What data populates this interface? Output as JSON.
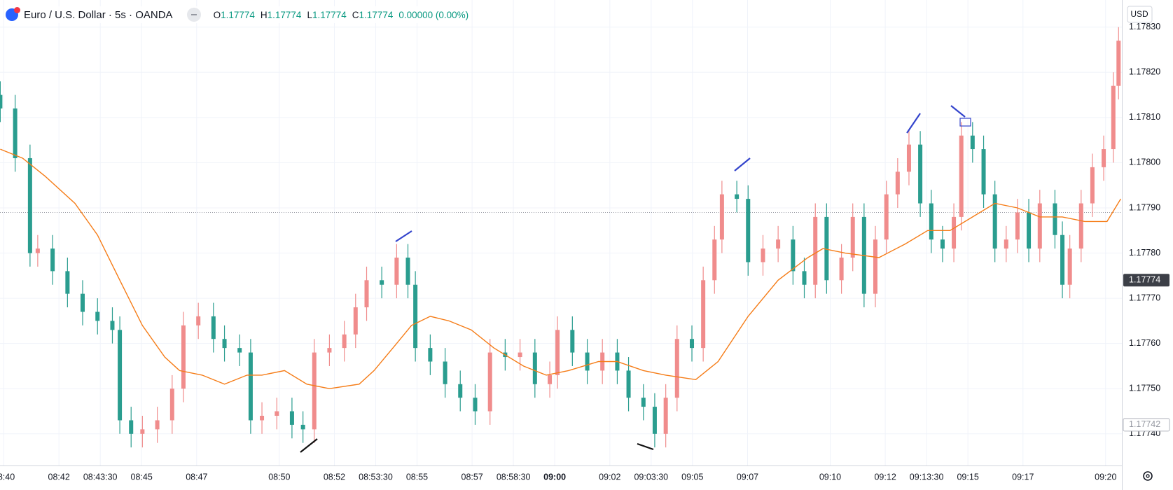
{
  "chart_data": {
    "type": "candlestick",
    "title": "Euro / U.S. Dollar · 5s · OANDA",
    "ohlc": [
      {
        "label": "O",
        "value": 1.17774
      },
      {
        "label": "H",
        "value": 1.17774
      },
      {
        "label": "L",
        "value": 1.17774
      },
      {
        "label": "C",
        "value": 1.17774
      }
    ],
    "change": "0.00000 (0.00%)",
    "currency": "USD",
    "up_color": "#f08c8c",
    "down_color": "#2a9d8f",
    "xlim": [
      519.86,
      560.59
    ],
    "ylim": [
      1.17733,
      1.17836
    ],
    "grid": true,
    "yticks": [
      {
        "value": 1.1774,
        "label": "1.17740"
      },
      {
        "value": 1.1775,
        "label": "1.17750"
      },
      {
        "value": 1.1776,
        "label": "1.17760"
      },
      {
        "value": 1.1777,
        "label": "1.17770"
      },
      {
        "value": 1.1778,
        "label": "1.17780"
      },
      {
        "value": 1.1779,
        "label": "1.17790"
      },
      {
        "value": 1.178,
        "label": "1.17800"
      },
      {
        "value": 1.1781,
        "label": "1.17810"
      },
      {
        "value": 1.1782,
        "label": "1.17820"
      },
      {
        "value": 1.1783,
        "label": "1.17830"
      }
    ],
    "xticks": [
      {
        "value": 520,
        "label": "08:40"
      },
      {
        "value": 522,
        "label": "08:42"
      },
      {
        "value": 523.5,
        "label": "08:43:30"
      },
      {
        "value": 525,
        "label": "08:45"
      },
      {
        "value": 527,
        "label": "08:47"
      },
      {
        "value": 530,
        "label": "08:50"
      },
      {
        "value": 532,
        "label": "08:52"
      },
      {
        "value": 533.5,
        "label": "08:53:30"
      },
      {
        "value": 535,
        "label": "08:55"
      },
      {
        "value": 537,
        "label": "08:57"
      },
      {
        "value": 538.5,
        "label": "08:58:30"
      },
      {
        "value": 540,
        "label": "09:00",
        "bold": true
      },
      {
        "value": 542,
        "label": "09:02"
      },
      {
        "value": 543.5,
        "label": "09:03:30"
      },
      {
        "value": 545,
        "label": "09:05"
      },
      {
        "value": 547,
        "label": "09:07"
      },
      {
        "value": 550,
        "label": "09:10"
      },
      {
        "value": 552,
        "label": "09:12"
      },
      {
        "value": 553.5,
        "label": "09:13:30"
      },
      {
        "value": 555,
        "label": "09:15"
      },
      {
        "value": 557,
        "label": "09:17"
      },
      {
        "value": 560,
        "label": "09:20"
      }
    ],
    "price_labels": [
      {
        "value": 1.17774,
        "label": "1.17774",
        "style": "solid"
      },
      {
        "value": 1.17742,
        "label": "1.17742",
        "style": "outline"
      }
    ],
    "dotted_line": 1.17789,
    "x": [
      519.87,
      520.41,
      520.95,
      521.23,
      521.77,
      522.31,
      522.86,
      523.4,
      523.94,
      524.21,
      524.62,
      525.03,
      525.57,
      526.11,
      526.52,
      527.06,
      527.61,
      528.01,
      528.56,
      528.96,
      529.37,
      529.91,
      530.46,
      530.86,
      531.27,
      531.82,
      532.36,
      532.77,
      533.17,
      533.72,
      534.26,
      534.67,
      534.94,
      535.48,
      536.02,
      536.57,
      537.11,
      537.65,
      538.2,
      538.74,
      539.28,
      539.82,
      540.1,
      540.64,
      541.18,
      541.73,
      542.27,
      542.68,
      543.22,
      543.63,
      544.03,
      544.44,
      544.98,
      545.39,
      545.8,
      546.07,
      546.61,
      547.02,
      547.56,
      548.11,
      548.65,
      549.06,
      549.46,
      549.87,
      550.41,
      550.82,
      551.23,
      551.64,
      552.04,
      552.45,
      552.86,
      553.27,
      553.67,
      554.08,
      554.49,
      554.76,
      555.17,
      555.57,
      555.98,
      556.39,
      556.8,
      557.21,
      557.61,
      558.16,
      558.43,
      558.7,
      559.11,
      559.52,
      559.93,
      560.28,
      560.47
    ],
    "open": [
      1.17815,
      1.17812,
      1.17801,
      1.1778,
      1.17781,
      1.17776,
      1.17771,
      1.17767,
      1.17765,
      1.17763,
      1.17743,
      1.1774,
      1.17741,
      1.17743,
      1.1775,
      1.17764,
      1.17766,
      1.17761,
      1.17759,
      1.17758,
      1.17743,
      1.17744,
      1.17745,
      1.17742,
      1.17741,
      1.17758,
      1.17759,
      1.17762,
      1.17768,
      1.17774,
      1.17773,
      1.17779,
      1.17773,
      1.17759,
      1.17756,
      1.17751,
      1.17748,
      1.17745,
      1.17758,
      1.17757,
      1.17758,
      1.17751,
      1.17753,
      1.17763,
      1.17758,
      1.17754,
      1.17758,
      1.17754,
      1.17748,
      1.17746,
      1.1774,
      1.17748,
      1.17761,
      1.17759,
      1.17774,
      1.17783,
      1.17793,
      1.17792,
      1.17778,
      1.17781,
      1.17783,
      1.17776,
      1.17773,
      1.17788,
      1.17774,
      1.17779,
      1.17788,
      1.17771,
      1.17783,
      1.17793,
      1.17798,
      1.17804,
      1.17791,
      1.17783,
      1.17781,
      1.17788,
      1.17806,
      1.17803,
      1.17793,
      1.17781,
      1.17783,
      1.17789,
      1.17781,
      1.17791,
      1.17784,
      1.17773,
      1.17781,
      1.17791,
      1.17799,
      1.17803,
      1.17817
    ],
    "high": [
      1.17818,
      1.17815,
      1.17804,
      1.17784,
      1.17784,
      1.17779,
      1.17774,
      1.1777,
      1.17768,
      1.17766,
      1.17746,
      1.17744,
      1.17746,
      1.17753,
      1.17767,
      1.17769,
      1.17769,
      1.17764,
      1.17762,
      1.17761,
      1.17747,
      1.17748,
      1.17748,
      1.17745,
      1.17761,
      1.17762,
      1.17765,
      1.17771,
      1.17777,
      1.17777,
      1.17782,
      1.17782,
      1.17776,
      1.17762,
      1.17759,
      1.17754,
      1.17751,
      1.17761,
      1.17761,
      1.17761,
      1.17761,
      1.17756,
      1.17766,
      1.17766,
      1.17761,
      1.17761,
      1.17761,
      1.17757,
      1.17751,
      1.17749,
      1.17751,
      1.17764,
      1.17764,
      1.17777,
      1.17786,
      1.17796,
      1.17796,
      1.17795,
      1.17784,
      1.17786,
      1.17786,
      1.17779,
      1.17791,
      1.17791,
      1.17782,
      1.17791,
      1.17791,
      1.17786,
      1.17796,
      1.17801,
      1.17807,
      1.17807,
      1.17794,
      1.17786,
      1.17791,
      1.17809,
      1.17809,
      1.17806,
      1.17796,
      1.17786,
      1.17792,
      1.17792,
      1.17794,
      1.17794,
      1.17787,
      1.17784,
      1.17794,
      1.17802,
      1.17806,
      1.1782,
      1.1783
    ],
    "low": [
      1.17809,
      1.17798,
      1.17777,
      1.17777,
      1.17773,
      1.17768,
      1.17764,
      1.17762,
      1.1776,
      1.1774,
      1.17737,
      1.17737,
      1.17738,
      1.1774,
      1.17747,
      1.17761,
      1.17758,
      1.17756,
      1.17755,
      1.1774,
      1.1774,
      1.17741,
      1.17739,
      1.17738,
      1.17738,
      1.17755,
      1.17756,
      1.17759,
      1.17765,
      1.1777,
      1.1777,
      1.1777,
      1.17756,
      1.17753,
      1.17748,
      1.17745,
      1.17742,
      1.17742,
      1.17754,
      1.17754,
      1.17748,
      1.17748,
      1.1775,
      1.17755,
      1.17751,
      1.17751,
      1.17751,
      1.17745,
      1.17743,
      1.17737,
      1.17737,
      1.17745,
      1.17756,
      1.17756,
      1.17771,
      1.1778,
      1.17789,
      1.17775,
      1.17775,
      1.17778,
      1.17773,
      1.1777,
      1.1777,
      1.17771,
      1.17771,
      1.17776,
      1.17768,
      1.17768,
      1.1778,
      1.1779,
      1.17795,
      1.17788,
      1.1778,
      1.17778,
      1.17778,
      1.17785,
      1.178,
      1.1779,
      1.17778,
      1.17778,
      1.1778,
      1.17778,
      1.17778,
      1.17781,
      1.1777,
      1.1777,
      1.17778,
      1.17788,
      1.17796,
      1.178,
      1.17814
    ],
    "close": [
      1.17812,
      1.17801,
      1.1778,
      1.17781,
      1.17776,
      1.17771,
      1.17767,
      1.17765,
      1.17763,
      1.17743,
      1.1774,
      1.17741,
      1.17743,
      1.1775,
      1.17764,
      1.17766,
      1.17761,
      1.17759,
      1.17758,
      1.17743,
      1.17744,
      1.17745,
      1.17742,
      1.17741,
      1.17758,
      1.17759,
      1.17762,
      1.17768,
      1.17774,
      1.17773,
      1.17779,
      1.17773,
      1.17759,
      1.17756,
      1.17751,
      1.17748,
      1.17745,
      1.17758,
      1.17757,
      1.17758,
      1.17751,
      1.17753,
      1.17763,
      1.17758,
      1.17754,
      1.17758,
      1.17754,
      1.17748,
      1.17746,
      1.1774,
      1.17748,
      1.17761,
      1.17759,
      1.17774,
      1.17783,
      1.17793,
      1.17792,
      1.17778,
      1.17781,
      1.17783,
      1.17776,
      1.17773,
      1.17788,
      1.17774,
      1.17779,
      1.17788,
      1.17771,
      1.17783,
      1.17793,
      1.17798,
      1.17804,
      1.17791,
      1.17783,
      1.17781,
      1.17788,
      1.17806,
      1.17803,
      1.17793,
      1.17781,
      1.17783,
      1.17789,
      1.17781,
      1.17791,
      1.17784,
      1.17773,
      1.17781,
      1.17791,
      1.17799,
      1.17803,
      1.17817,
      1.17827
    ],
    "ma": {
      "color": "#f57c17",
      "x": [
        519.87,
        520.68,
        521.5,
        522.58,
        523.4,
        524.21,
        525.03,
        525.84,
        526.38,
        527.2,
        528.01,
        528.83,
        529.37,
        530.19,
        531,
        531.82,
        532.9,
        533.44,
        534.26,
        534.8,
        535.48,
        536.16,
        536.97,
        537.79,
        538.87,
        539.69,
        540.5,
        541.59,
        542.27,
        543.22,
        544.03,
        545.12,
        545.93,
        547.02,
        548.11,
        549.19,
        549.74,
        550.55,
        551.77,
        552.72,
        553.54,
        554.35,
        555.17,
        555.98,
        556.8,
        557.61,
        558.43,
        559.24,
        560.05,
        560.55
      ],
      "values": [
        1.17803,
        1.17801,
        1.17797,
        1.17791,
        1.17784,
        1.17774,
        1.17764,
        1.17757,
        1.17754,
        1.17753,
        1.17751,
        1.17753,
        1.17753,
        1.17754,
        1.17751,
        1.1775,
        1.17751,
        1.17754,
        1.1776,
        1.17764,
        1.17766,
        1.17765,
        1.17763,
        1.17759,
        1.17755,
        1.17753,
        1.17754,
        1.17756,
        1.17756,
        1.17754,
        1.17753,
        1.17752,
        1.17756,
        1.17766,
        1.17774,
        1.17779,
        1.17781,
        1.1778,
        1.17779,
        1.17782,
        1.17785,
        1.17785,
        1.17788,
        1.17791,
        1.1779,
        1.17788,
        1.17788,
        1.17787,
        1.17787,
        1.17792
      ]
    }
  }
}
